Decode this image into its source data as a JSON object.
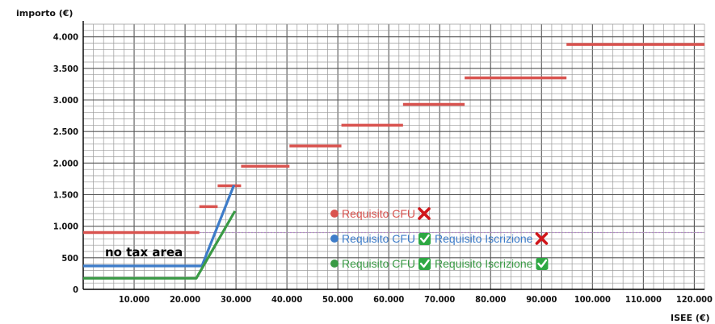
{
  "chart_data": {
    "type": "line",
    "xlabel": "ISEE (€)",
    "ylabel": "importo (€)",
    "xlim": [
      0,
      122000
    ],
    "ylim": [
      0,
      4200
    ],
    "x_ticks": [
      10000,
      20000,
      30000,
      40000,
      50000,
      60000,
      70000,
      80000,
      90000,
      100000,
      110000,
      120000
    ],
    "x_tick_labels": [
      "10.000",
      "20.000",
      "30.000",
      "40.000",
      "50.000",
      "60.000",
      "70.000",
      "80.000",
      "90.000",
      "100.000",
      "110.000",
      "120.000"
    ],
    "y_ticks": [
      0,
      500,
      1000,
      1500,
      2000,
      2500,
      3000,
      3500,
      4000
    ],
    "y_tick_labels": [
      "0",
      "500",
      "1.000",
      "1.500",
      "2.000",
      "2.500",
      "3.000",
      "3.500",
      "4.000"
    ],
    "grid": true,
    "annotation": "no tax area",
    "reference_line": {
      "y": 900,
      "color": "#b388c9"
    },
    "series": [
      {
        "name": "Requisito CFU",
        "color": "#d9534f",
        "style": "steps",
        "segments": [
          [
            0,
            22800,
            900
          ],
          [
            22800,
            26400,
            1310
          ],
          [
            26400,
            31000,
            1640
          ],
          [
            31000,
            40500,
            1950
          ],
          [
            40500,
            50700,
            2270
          ],
          [
            50700,
            62800,
            2600
          ],
          [
            62800,
            74900,
            2930
          ],
          [
            74900,
            94900,
            3350
          ],
          [
            94900,
            122000,
            3880
          ]
        ]
      },
      {
        "name": "Requisito CFU + Requisito Iscrizione",
        "color": "#3d7cc9",
        "style": "line",
        "x": [
          0,
          23300,
          29600
        ],
        "y": [
          370,
          370,
          1650
        ]
      },
      {
        "name": "Requisito CFU + Requisito Iscrizione",
        "color": "#3a9a45",
        "style": "line",
        "x": [
          0,
          22200,
          29800
        ],
        "y": [
          175,
          175,
          1240
        ]
      }
    ],
    "legend": [
      {
        "dot": "#d9534f",
        "text_color": "#d9534f",
        "parts": [
          "Requisito CFU"
        ],
        "marks": [
          "cross"
        ]
      },
      {
        "dot": "#3d7cc9",
        "text_color": "#3d7cc9",
        "parts": [
          "Requisito CFU",
          "Requisito Iscrizione"
        ],
        "marks": [
          "check",
          "cross"
        ]
      },
      {
        "dot": "#3a9a45",
        "text_color": "#3a9a45",
        "parts": [
          "Requisito CFU",
          "Requisito Iscrizione"
        ],
        "marks": [
          "check",
          "check"
        ]
      }
    ]
  }
}
